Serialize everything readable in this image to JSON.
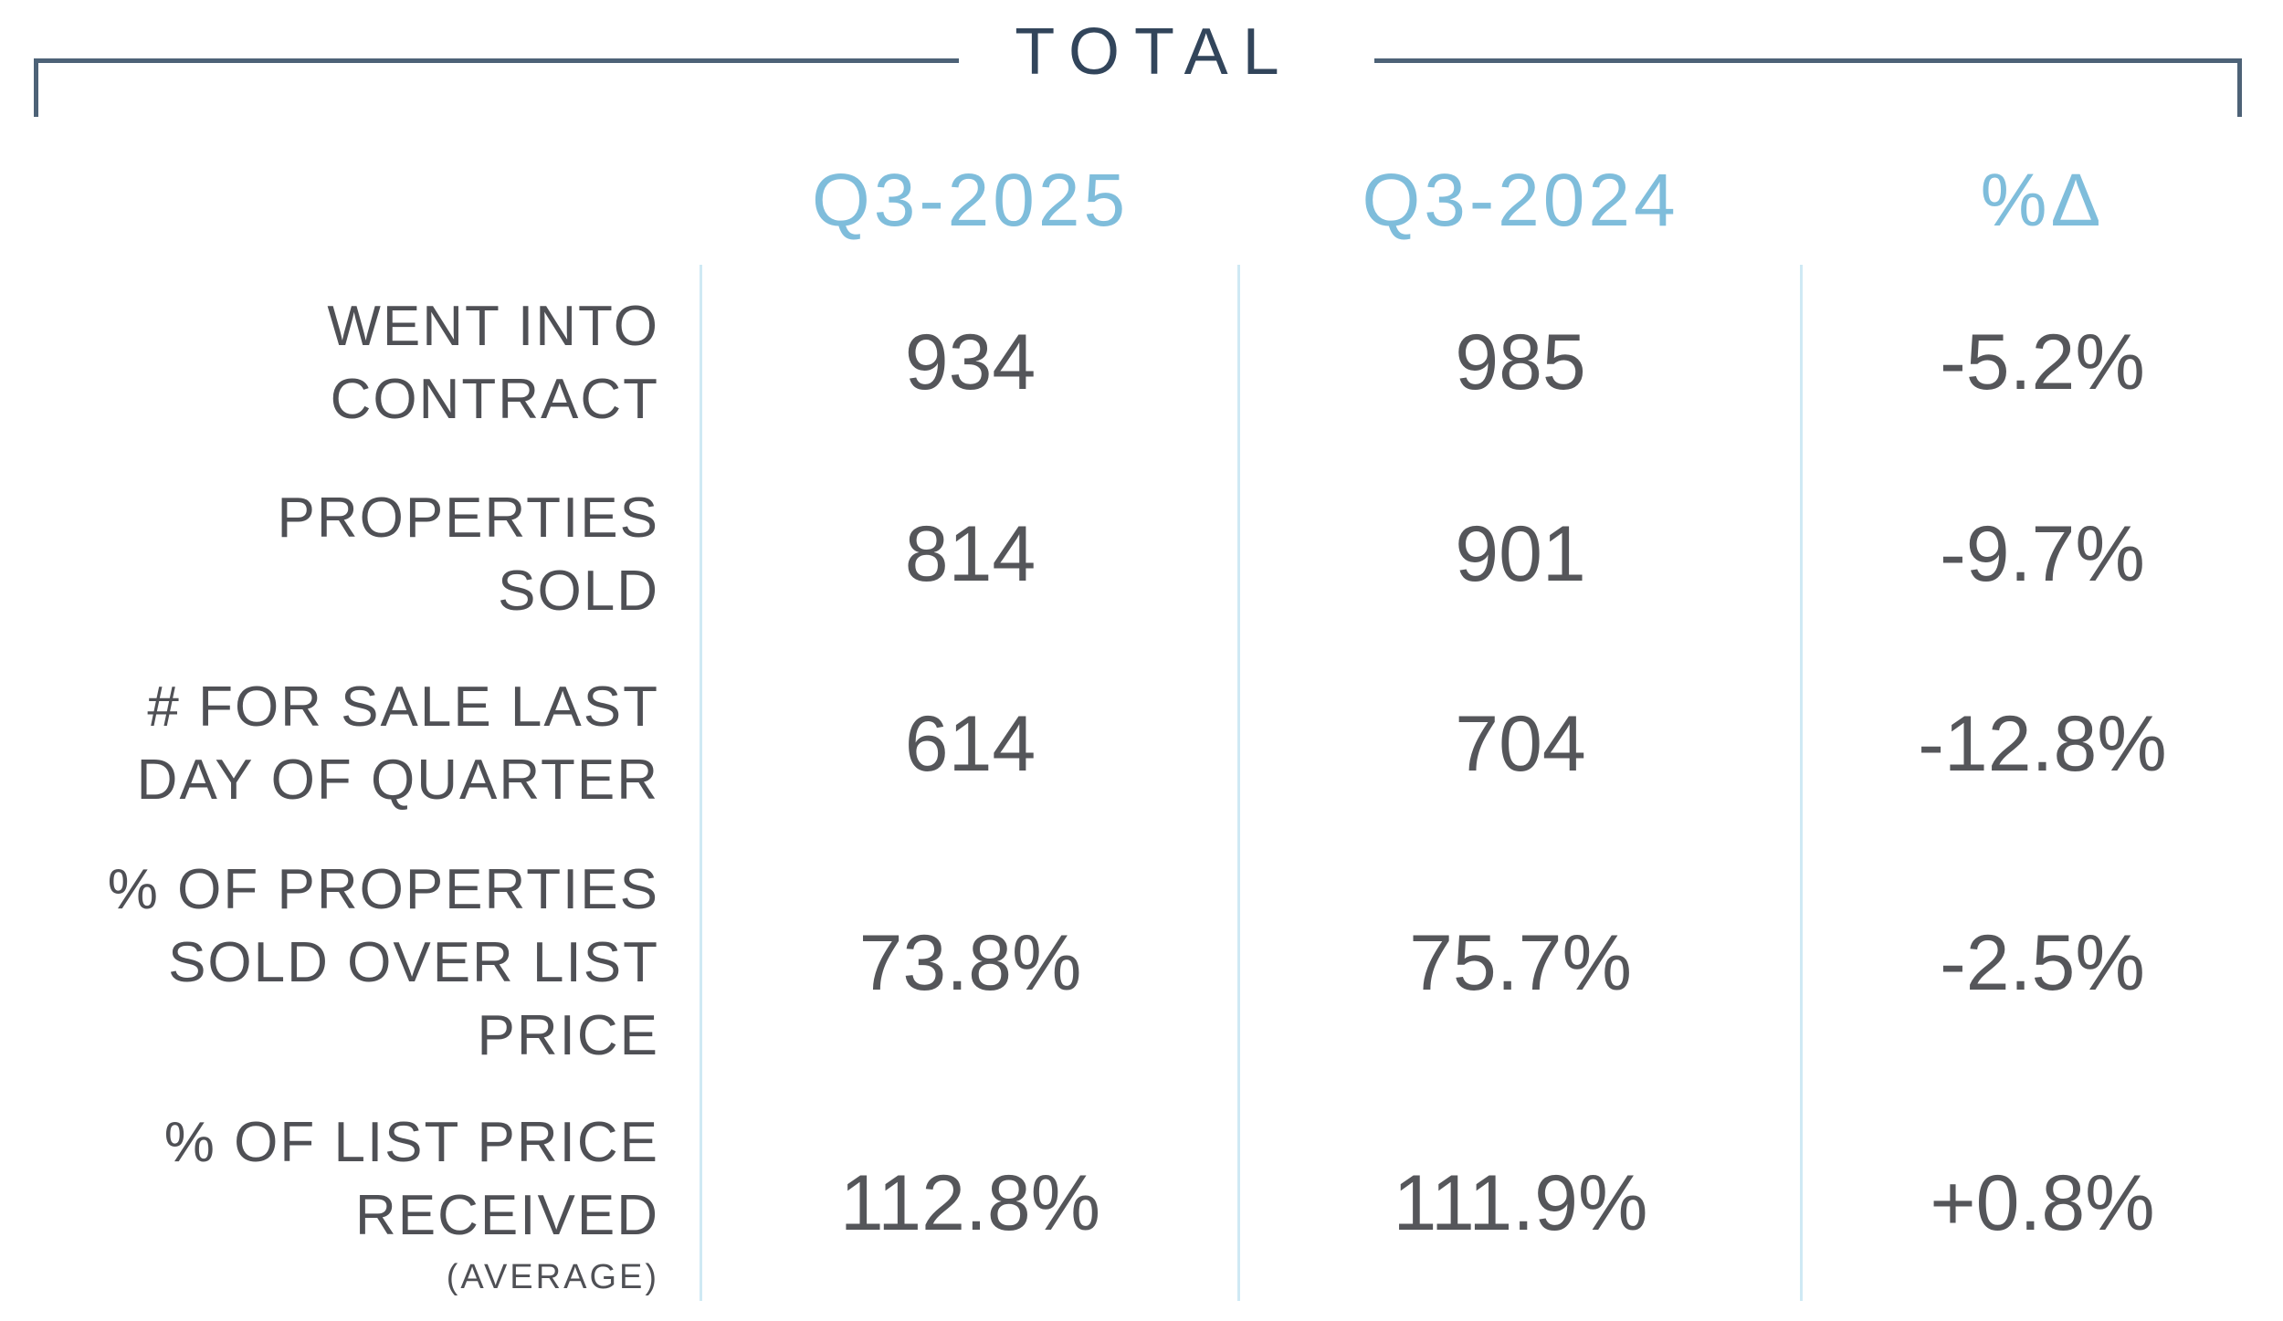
{
  "title": "TOTAL",
  "columns": [
    "Q3-2025",
    "Q3-2024",
    "%Δ"
  ],
  "rows": [
    {
      "label_lines": [
        "WENT INTO",
        "CONTRACT"
      ],
      "values": [
        "934",
        "985",
        "-5.2%"
      ]
    },
    {
      "label_lines": [
        "PROPERTIES",
        "SOLD"
      ],
      "values": [
        "814",
        "901",
        "-9.7%"
      ]
    },
    {
      "label_lines": [
        "# FOR SALE LAST",
        "DAY OF QUARTER"
      ],
      "values": [
        "614",
        "704",
        "-12.8%"
      ]
    },
    {
      "label_lines": [
        "% OF PROPERTIES",
        "SOLD OVER LIST",
        "PRICE"
      ],
      "values": [
        "73.8%",
        "75.7%",
        "-2.5%"
      ]
    },
    {
      "label_lines": [
        "% OF LIST PRICE",
        "RECEIVED"
      ],
      "sublabel": "(AVERAGE)",
      "values": [
        "112.8%",
        "111.9%",
        "+0.8%"
      ]
    }
  ],
  "colors": {
    "title_navy": "#32455b",
    "bracket_slate": "#4d6277",
    "header_blue": "#7fbddb",
    "divider_blue": "#cfe9f4",
    "value_gray": "#55565a",
    "label_gray": "#4f5055"
  },
  "chart_data": {
    "type": "table",
    "title": "TOTAL",
    "row_labels": [
      "WENT INTO CONTRACT",
      "PROPERTIES SOLD",
      "# FOR SALE LAST DAY OF QUARTER",
      "% OF PROPERTIES SOLD OVER LIST PRICE",
      "% OF LIST PRICE RECEIVED (AVERAGE)"
    ],
    "columns": [
      "Q3-2025",
      "Q3-2024",
      "%Δ"
    ],
    "series": [
      {
        "name": "Q3-2025",
        "values": [
          934,
          814,
          614,
          "73.8%",
          "112.8%"
        ]
      },
      {
        "name": "Q3-2024",
        "values": [
          985,
          901,
          704,
          "75.7%",
          "111.9%"
        ]
      },
      {
        "name": "%Δ",
        "values": [
          "-5.2%",
          "-9.7%",
          "-12.8%",
          "-2.5%",
          "+0.8%"
        ]
      }
    ],
    "layout": {
      "grid": "column dividers only",
      "label_alignment": "right",
      "value_alignment": "center"
    }
  }
}
